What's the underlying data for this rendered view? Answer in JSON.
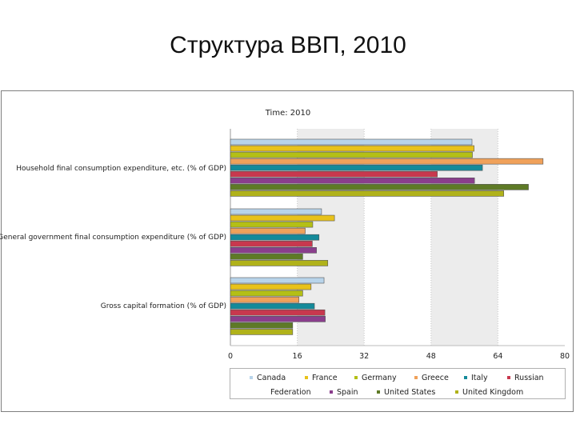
{
  "slide": {
    "title": "Структура ВВП, 2010"
  },
  "chart_data": {
    "type": "bar",
    "orientation": "horizontal",
    "title": "Time: 2010",
    "categories": [
      "Household final consumption expenditure, etc. (% of GDP)",
      "General government final consumption expenditure (% of GDP)",
      "Gross capital formation (% of GDP)"
    ],
    "xlim": [
      0,
      80
    ],
    "xticks": [
      "0",
      "16",
      "32",
      "48",
      "64",
      "80"
    ],
    "grid": "alternating vertical bands",
    "legend_placement": "bottom",
    "series": [
      {
        "name": "Canada",
        "color": "#b8d4ea",
        "values": [
          57.8,
          21.8,
          22.4
        ]
      },
      {
        "name": "France",
        "color": "#e8c21a",
        "values": [
          58.3,
          24.9,
          19.3
        ]
      },
      {
        "name": "Germany",
        "color": "#b4bf16",
        "values": [
          57.9,
          19.7,
          17.3
        ]
      },
      {
        "name": "Greece",
        "color": "#f0a15a",
        "values": [
          74.8,
          17.9,
          16.4
        ]
      },
      {
        "name": "Italy",
        "color": "#148a9a",
        "values": [
          60.3,
          21.2,
          20.1
        ]
      },
      {
        "name": "Russian Federation",
        "color": "#c8384e",
        "values": [
          49.5,
          19.6,
          22.6
        ]
      },
      {
        "name": "Spain",
        "color": "#8a3e8c",
        "values": [
          58.4,
          20.6,
          22.7
        ]
      },
      {
        "name": "United States",
        "color": "#5e7a26",
        "values": [
          71.3,
          17.3,
          14.9
        ]
      },
      {
        "name": "United Kingdom",
        "color": "#b0b21a",
        "values": [
          65.4,
          23.3,
          14.9
        ]
      }
    ]
  },
  "legend": {
    "items": [
      {
        "label": "Canada",
        "color": "#b8d4ea"
      },
      {
        "label": "France",
        "color": "#e8c21a"
      },
      {
        "label": "Germany",
        "color": "#b4bf16"
      },
      {
        "label": "Greece",
        "color": "#f0a15a"
      },
      {
        "label": "Italy",
        "color": "#148a9a"
      },
      {
        "label": "Russian",
        "color": "#c8384e"
      },
      {
        "label": "Federation",
        "color": ""
      },
      {
        "label": "Spain",
        "color": "#8a3e8c"
      },
      {
        "label": "United States",
        "color": "#5e7a26"
      },
      {
        "label": "United Kingdom",
        "color": "#b0b21a"
      }
    ]
  }
}
